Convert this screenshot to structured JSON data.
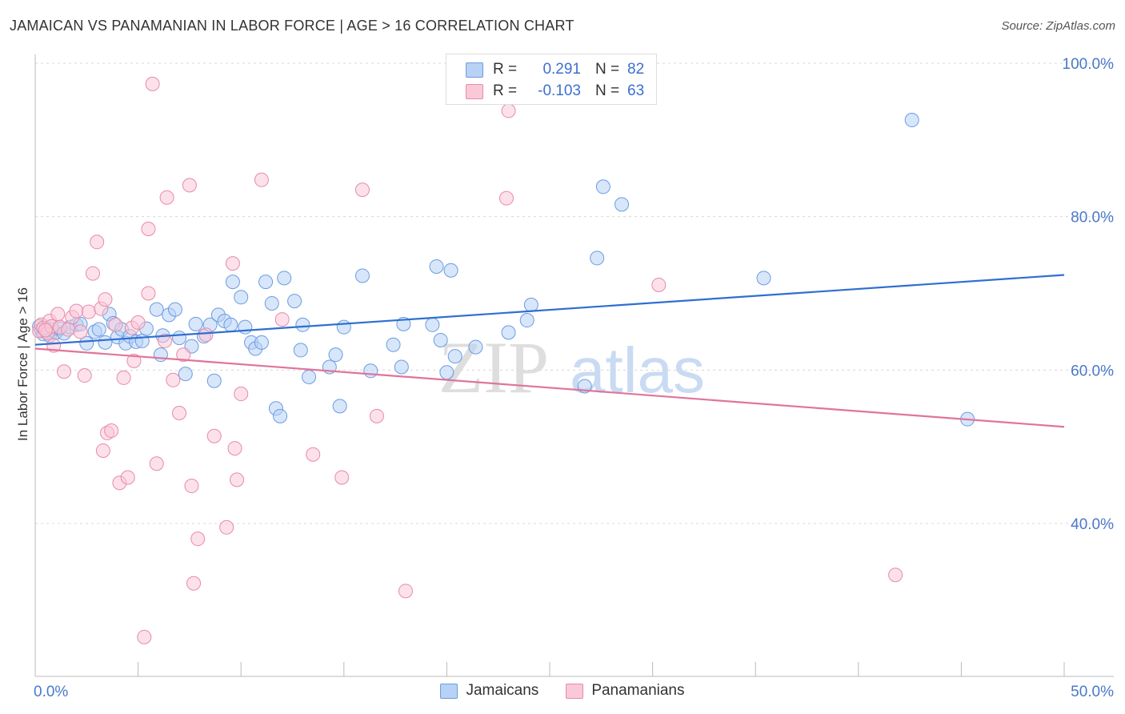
{
  "title": "JAMAICAN VS PANAMANIAN IN LABOR FORCE | AGE > 16 CORRELATION CHART",
  "source": "Source: ZipAtlas.com",
  "watermark": {
    "zip": "ZIP",
    "atlas": "atlas"
  },
  "legend": {
    "r_label": "R =",
    "n_label": "N =",
    "rows": [
      {
        "name": "Jamaicans",
        "r": "0.291",
        "n": "82",
        "fill": "#b8d2f5",
        "stroke": "#6b9ce0"
      },
      {
        "name": "Panamanians",
        "r": "-0.103",
        "n": "63",
        "fill": "#f9c9d8",
        "stroke": "#e88aa8"
      }
    ]
  },
  "chart_data": {
    "type": "scatter",
    "ylabel": "In Labor Force | Age > 16",
    "xlabel": "",
    "xlim": [
      0,
      50
    ],
    "ylim": [
      20,
      103
    ],
    "x_tick_labels": [
      "0.0%",
      "50.0%"
    ],
    "y_ticks": [
      {
        "value": 100,
        "label": "100.0%"
      },
      {
        "value": 80,
        "label": "80.0%"
      },
      {
        "value": 60,
        "label": "60.0%"
      },
      {
        "value": 40,
        "label": "40.0%"
      }
    ],
    "grid": "horizontal dashed",
    "series": [
      {
        "name": "Jamaicans",
        "color": "#6b9ce0",
        "fill": "#b8d2f5",
        "trend": {
          "x": [
            0,
            50
          ],
          "y": [
            63.3,
            72.4
          ],
          "color": "#2e6fd1"
        },
        "points": [
          [
            0.2,
            65.7
          ],
          [
            0.3,
            65.2
          ],
          [
            0.4,
            64.7
          ],
          [
            0.5,
            65.5
          ],
          [
            0.6,
            65.0
          ],
          [
            0.7,
            64.5
          ],
          [
            0.8,
            65.3
          ],
          [
            1.0,
            64.9
          ],
          [
            1.2,
            65.4
          ],
          [
            1.4,
            64.8
          ],
          [
            1.7,
            65.6
          ],
          [
            2.0,
            65.9
          ],
          [
            2.2,
            66.0
          ],
          [
            2.5,
            63.5
          ],
          [
            2.9,
            65.0
          ],
          [
            3.1,
            65.3
          ],
          [
            3.4,
            63.6
          ],
          [
            3.6,
            67.3
          ],
          [
            3.8,
            66.1
          ],
          [
            4.0,
            64.3
          ],
          [
            4.2,
            65.3
          ],
          [
            4.4,
            63.5
          ],
          [
            4.6,
            64.4
          ],
          [
            4.9,
            63.7
          ],
          [
            5.2,
            63.8
          ],
          [
            5.4,
            65.4
          ],
          [
            5.9,
            67.9
          ],
          [
            6.1,
            62.0
          ],
          [
            6.2,
            64.5
          ],
          [
            6.5,
            67.2
          ],
          [
            6.8,
            67.9
          ],
          [
            7.0,
            64.2
          ],
          [
            7.3,
            59.5
          ],
          [
            7.6,
            63.1
          ],
          [
            7.8,
            66.0
          ],
          [
            8.2,
            64.4
          ],
          [
            8.5,
            65.9
          ],
          [
            8.7,
            58.6
          ],
          [
            8.9,
            67.2
          ],
          [
            9.2,
            66.4
          ],
          [
            9.5,
            65.9
          ],
          [
            9.6,
            71.5
          ],
          [
            10.0,
            69.5
          ],
          [
            10.2,
            65.6
          ],
          [
            10.5,
            63.6
          ],
          [
            10.7,
            62.8
          ],
          [
            11.0,
            63.6
          ],
          [
            11.2,
            71.5
          ],
          [
            11.5,
            68.7
          ],
          [
            11.7,
            55.0
          ],
          [
            11.9,
            54.0
          ],
          [
            12.1,
            72.0
          ],
          [
            12.6,
            69.0
          ],
          [
            12.9,
            62.6
          ],
          [
            13.0,
            65.9
          ],
          [
            13.3,
            59.1
          ],
          [
            14.3,
            60.4
          ],
          [
            14.6,
            62.0
          ],
          [
            14.8,
            55.3
          ],
          [
            15.0,
            65.6
          ],
          [
            15.9,
            72.3
          ],
          [
            16.3,
            59.9
          ],
          [
            17.4,
            63.3
          ],
          [
            17.8,
            60.4
          ],
          [
            17.9,
            66.0
          ],
          [
            19.3,
            65.9
          ],
          [
            19.5,
            73.5
          ],
          [
            19.7,
            63.9
          ],
          [
            20.0,
            59.7
          ],
          [
            20.2,
            73.0
          ],
          [
            20.4,
            61.8
          ],
          [
            21.4,
            63.0
          ],
          [
            23.0,
            64.9
          ],
          [
            23.9,
            66.5
          ],
          [
            24.1,
            68.5
          ],
          [
            26.7,
            57.9
          ],
          [
            27.3,
            74.6
          ],
          [
            27.6,
            83.9
          ],
          [
            28.5,
            81.6
          ],
          [
            35.4,
            72.0
          ],
          [
            42.6,
            92.6
          ],
          [
            45.3,
            53.6
          ]
        ]
      },
      {
        "name": "Panamanians",
        "color": "#e88aa8",
        "fill": "#f9c9d8",
        "trend": {
          "x": [
            0,
            50
          ],
          "y": [
            62.8,
            52.6
          ],
          "color": "#e0749a"
        },
        "points": [
          [
            0.2,
            65.1
          ],
          [
            0.3,
            65.9
          ],
          [
            0.4,
            65.5
          ],
          [
            0.6,
            64.8
          ],
          [
            0.7,
            66.4
          ],
          [
            0.8,
            65.7
          ],
          [
            0.9,
            63.2
          ],
          [
            1.1,
            67.3
          ],
          [
            1.2,
            65.6
          ],
          [
            1.4,
            59.8
          ],
          [
            1.6,
            65.3
          ],
          [
            1.8,
            66.9
          ],
          [
            2.0,
            67.7
          ],
          [
            2.2,
            65.0
          ],
          [
            2.4,
            59.3
          ],
          [
            2.6,
            67.6
          ],
          [
            2.8,
            72.6
          ],
          [
            3.0,
            76.7
          ],
          [
            3.2,
            68.0
          ],
          [
            3.3,
            49.5
          ],
          [
            3.4,
            69.2
          ],
          [
            3.5,
            51.8
          ],
          [
            3.7,
            52.1
          ],
          [
            3.9,
            65.9
          ],
          [
            4.1,
            45.3
          ],
          [
            4.3,
            59.0
          ],
          [
            4.5,
            46.0
          ],
          [
            4.7,
            65.5
          ],
          [
            4.8,
            61.2
          ],
          [
            5.0,
            66.2
          ],
          [
            5.3,
            25.2
          ],
          [
            5.5,
            78.4
          ],
          [
            5.5,
            70.0
          ],
          [
            5.7,
            97.3
          ],
          [
            5.9,
            47.8
          ],
          [
            6.3,
            63.8
          ],
          [
            6.4,
            82.5
          ],
          [
            6.7,
            58.7
          ],
          [
            7.0,
            54.4
          ],
          [
            7.2,
            62.0
          ],
          [
            7.5,
            84.1
          ],
          [
            7.6,
            44.9
          ],
          [
            7.7,
            32.2
          ],
          [
            7.9,
            38.0
          ],
          [
            8.3,
            64.6
          ],
          [
            8.7,
            51.4
          ],
          [
            9.3,
            39.5
          ],
          [
            9.6,
            73.9
          ],
          [
            9.7,
            49.8
          ],
          [
            9.8,
            45.7
          ],
          [
            10.0,
            56.9
          ],
          [
            11.0,
            84.8
          ],
          [
            12.0,
            66.6
          ],
          [
            13.5,
            49.0
          ],
          [
            14.9,
            46.0
          ],
          [
            15.9,
            83.5
          ],
          [
            16.6,
            54.0
          ],
          [
            18.0,
            31.2
          ],
          [
            22.9,
            82.4
          ],
          [
            23.0,
            93.8
          ],
          [
            30.3,
            71.1
          ],
          [
            41.8,
            33.3
          ],
          [
            0.5,
            65.2
          ]
        ]
      }
    ]
  }
}
